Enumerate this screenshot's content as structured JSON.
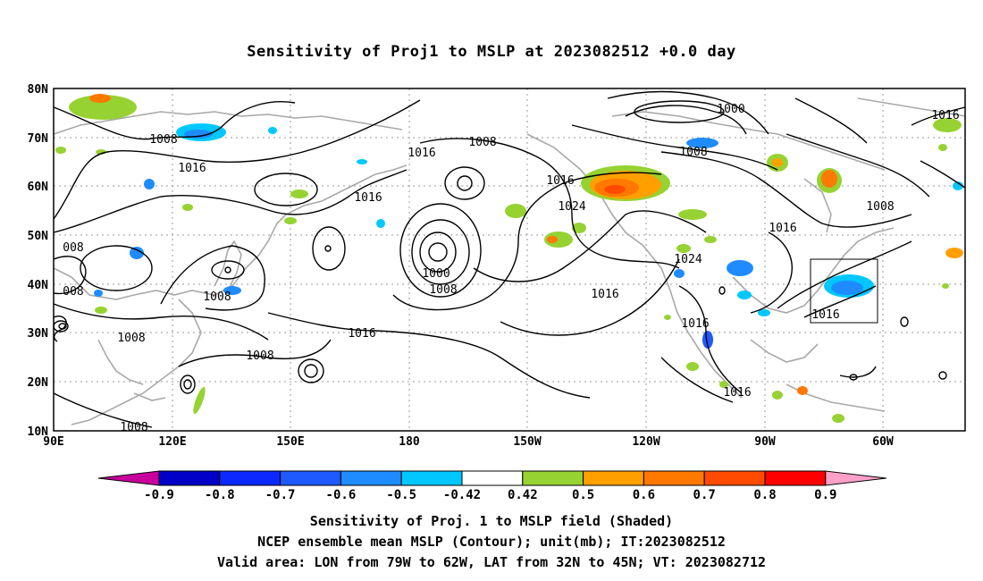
{
  "title": "Sensitivity of Proj1 to MSLP at 2023082512 +0.0 day",
  "lat_labels": [
    "80N",
    "70N",
    "60N",
    "50N",
    "40N",
    "30N",
    "20N",
    "10N"
  ],
  "lon_labels": [
    "90E",
    "120E",
    "150E",
    "180",
    "150W",
    "120W",
    "90W",
    "60W"
  ],
  "contour_labels": [
    {
      "text": "1008"
    },
    {
      "text": "1016"
    },
    {
      "text": "1008"
    },
    {
      "text": "1016"
    },
    {
      "text": "1000"
    },
    {
      "text": "1008"
    },
    {
      "text": "1016"
    },
    {
      "text": "1024"
    },
    {
      "text": "1016"
    },
    {
      "text": "1000"
    },
    {
      "text": "1008"
    },
    {
      "text": "1016"
    },
    {
      "text": "1008"
    },
    {
      "text": "1024"
    },
    {
      "text": "1016"
    },
    {
      "text": "1016"
    },
    {
      "text": "1016"
    },
    {
      "text": "1016"
    },
    {
      "text": "1008"
    },
    {
      "text": "008"
    },
    {
      "text": "008"
    },
    {
      "text": "1008"
    },
    {
      "text": "1008"
    },
    {
      "text": "1008"
    },
    {
      "text": "1016"
    },
    {
      "text": "1016"
    }
  ],
  "colorbar": {
    "labels": [
      "-0.9",
      "-0.8",
      "-0.7",
      "-0.6",
      "-0.5",
      "-0.42",
      "0.42",
      "0.5",
      "0.6",
      "0.7",
      "0.8",
      "0.9"
    ],
    "colors": [
      "#0000c8",
      "#0a28ff",
      "#1e5aff",
      "#1e8cff",
      "#00c8ff",
      "#ffffff",
      "#96d232",
      "#ffa000",
      "#ff7800",
      "#ff4b00",
      "#ff0000"
    ],
    "low_extend_color": "#c8009b",
    "high_extend_color": "#ffa0c8"
  },
  "captions": [
    "Sensitivity of Proj. 1 to MSLP field (Shaded)",
    "NCEP ensemble mean MSLP (Contour); unit(mb); IT:2023082512",
    "Valid area: LON from 79W to 62W, LAT from 32N to 45N; VT: 2023082712"
  ]
}
